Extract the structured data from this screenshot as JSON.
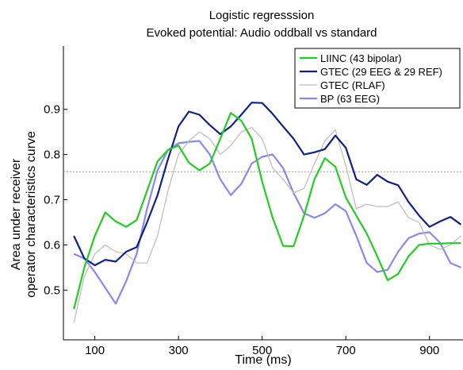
{
  "chart_data": {
    "type": "line",
    "title": "Logistic regresssion",
    "subtitle": "Evoked potential: Audio oddball vs standard",
    "xlabel": "Time (ms)",
    "ylabel_line1": "Area under receiver",
    "ylabel_line2": "operator characteristics curve",
    "xlim": [
      25,
      980
    ],
    "ylim": [
      0.39,
      1.04
    ],
    "xticks": [
      100,
      300,
      500,
      700,
      900
    ],
    "yticks": [
      0.5,
      0.6,
      0.7,
      0.8,
      0.9
    ],
    "reference_line": 0.762,
    "legend_position": "top-right",
    "series": [
      {
        "name": "LIINC (43 bipolar)",
        "color": "#22cc22",
        "style": "solid",
        "x": [
          50,
          75,
          100,
          125,
          150,
          175,
          200,
          225,
          250,
          275,
          300,
          325,
          350,
          375,
          400,
          425,
          450,
          475,
          500,
          525,
          550,
          575,
          600,
          625,
          650,
          675,
          700,
          725,
          750,
          775,
          800,
          825,
          850,
          875,
          900,
          925,
          950,
          975
        ],
        "y": [
          0.458,
          0.55,
          0.62,
          0.672,
          0.652,
          0.64,
          0.655,
          0.72,
          0.785,
          0.81,
          0.82,
          0.782,
          0.765,
          0.78,
          0.835,
          0.892,
          0.875,
          0.835,
          0.74,
          0.66,
          0.598,
          0.597,
          0.665,
          0.745,
          0.792,
          0.773,
          0.705,
          0.665,
          0.625,
          0.575,
          0.522,
          0.536,
          0.575,
          0.6,
          0.603,
          0.603,
          0.604,
          0.604
        ]
      },
      {
        "name": "GTEC (29 EEG & 29 REF)",
        "color": "#10208a",
        "style": "solid",
        "x": [
          50,
          75,
          100,
          125,
          150,
          175,
          200,
          225,
          250,
          275,
          300,
          325,
          350,
          375,
          400,
          425,
          450,
          475,
          500,
          525,
          550,
          575,
          600,
          625,
          650,
          675,
          700,
          725,
          750,
          775,
          800,
          825,
          850,
          875,
          900,
          925,
          950,
          975
        ],
        "y": [
          0.62,
          0.57,
          0.555,
          0.567,
          0.563,
          0.585,
          0.595,
          0.65,
          0.71,
          0.79,
          0.862,
          0.895,
          0.888,
          0.865,
          0.845,
          0.862,
          0.888,
          0.915,
          0.914,
          0.89,
          0.862,
          0.835,
          0.8,
          0.805,
          0.812,
          0.842,
          0.815,
          0.745,
          0.733,
          0.755,
          0.74,
          0.732,
          0.695,
          0.665,
          0.64,
          0.652,
          0.662,
          0.645
        ]
      },
      {
        "name": "GTEC (RLAF)",
        "color": "#bbbbbb",
        "style": "solid",
        "x": [
          50,
          75,
          100,
          125,
          150,
          175,
          200,
          225,
          250,
          275,
          300,
          325,
          350,
          375,
          400,
          425,
          450,
          475,
          500,
          525,
          550,
          575,
          600,
          625,
          650,
          675,
          700,
          725,
          750,
          775,
          800,
          825,
          850,
          875,
          900,
          925,
          950,
          975
        ],
        "y": [
          0.428,
          0.53,
          0.58,
          0.6,
          0.585,
          0.58,
          0.56,
          0.56,
          0.62,
          0.72,
          0.8,
          0.83,
          0.85,
          0.835,
          0.8,
          0.82,
          0.85,
          0.86,
          0.835,
          0.77,
          0.745,
          0.715,
          0.725,
          0.78,
          0.83,
          0.855,
          0.775,
          0.68,
          0.69,
          0.685,
          0.685,
          0.695,
          0.66,
          0.65,
          0.6,
          0.59,
          0.6,
          0.62
        ]
      },
      {
        "name": "BP (63 EEG)",
        "color": "#8888ee",
        "style": "solid",
        "x": [
          50,
          75,
          100,
          125,
          150,
          175,
          200,
          225,
          250,
          275,
          300,
          325,
          350,
          375,
          400,
          425,
          450,
          475,
          500,
          525,
          550,
          575,
          600,
          625,
          650,
          675,
          700,
          725,
          750,
          775,
          800,
          825,
          850,
          875,
          900,
          925,
          950,
          975
        ],
        "y": [
          0.58,
          0.57,
          0.54,
          0.505,
          0.47,
          0.52,
          0.58,
          0.68,
          0.765,
          0.81,
          0.825,
          0.828,
          0.83,
          0.8,
          0.745,
          0.71,
          0.735,
          0.78,
          0.795,
          0.8,
          0.77,
          0.715,
          0.67,
          0.66,
          0.67,
          0.69,
          0.675,
          0.62,
          0.56,
          0.54,
          0.545,
          0.585,
          0.615,
          0.625,
          0.628,
          0.605,
          0.56,
          0.55
        ]
      }
    ]
  }
}
